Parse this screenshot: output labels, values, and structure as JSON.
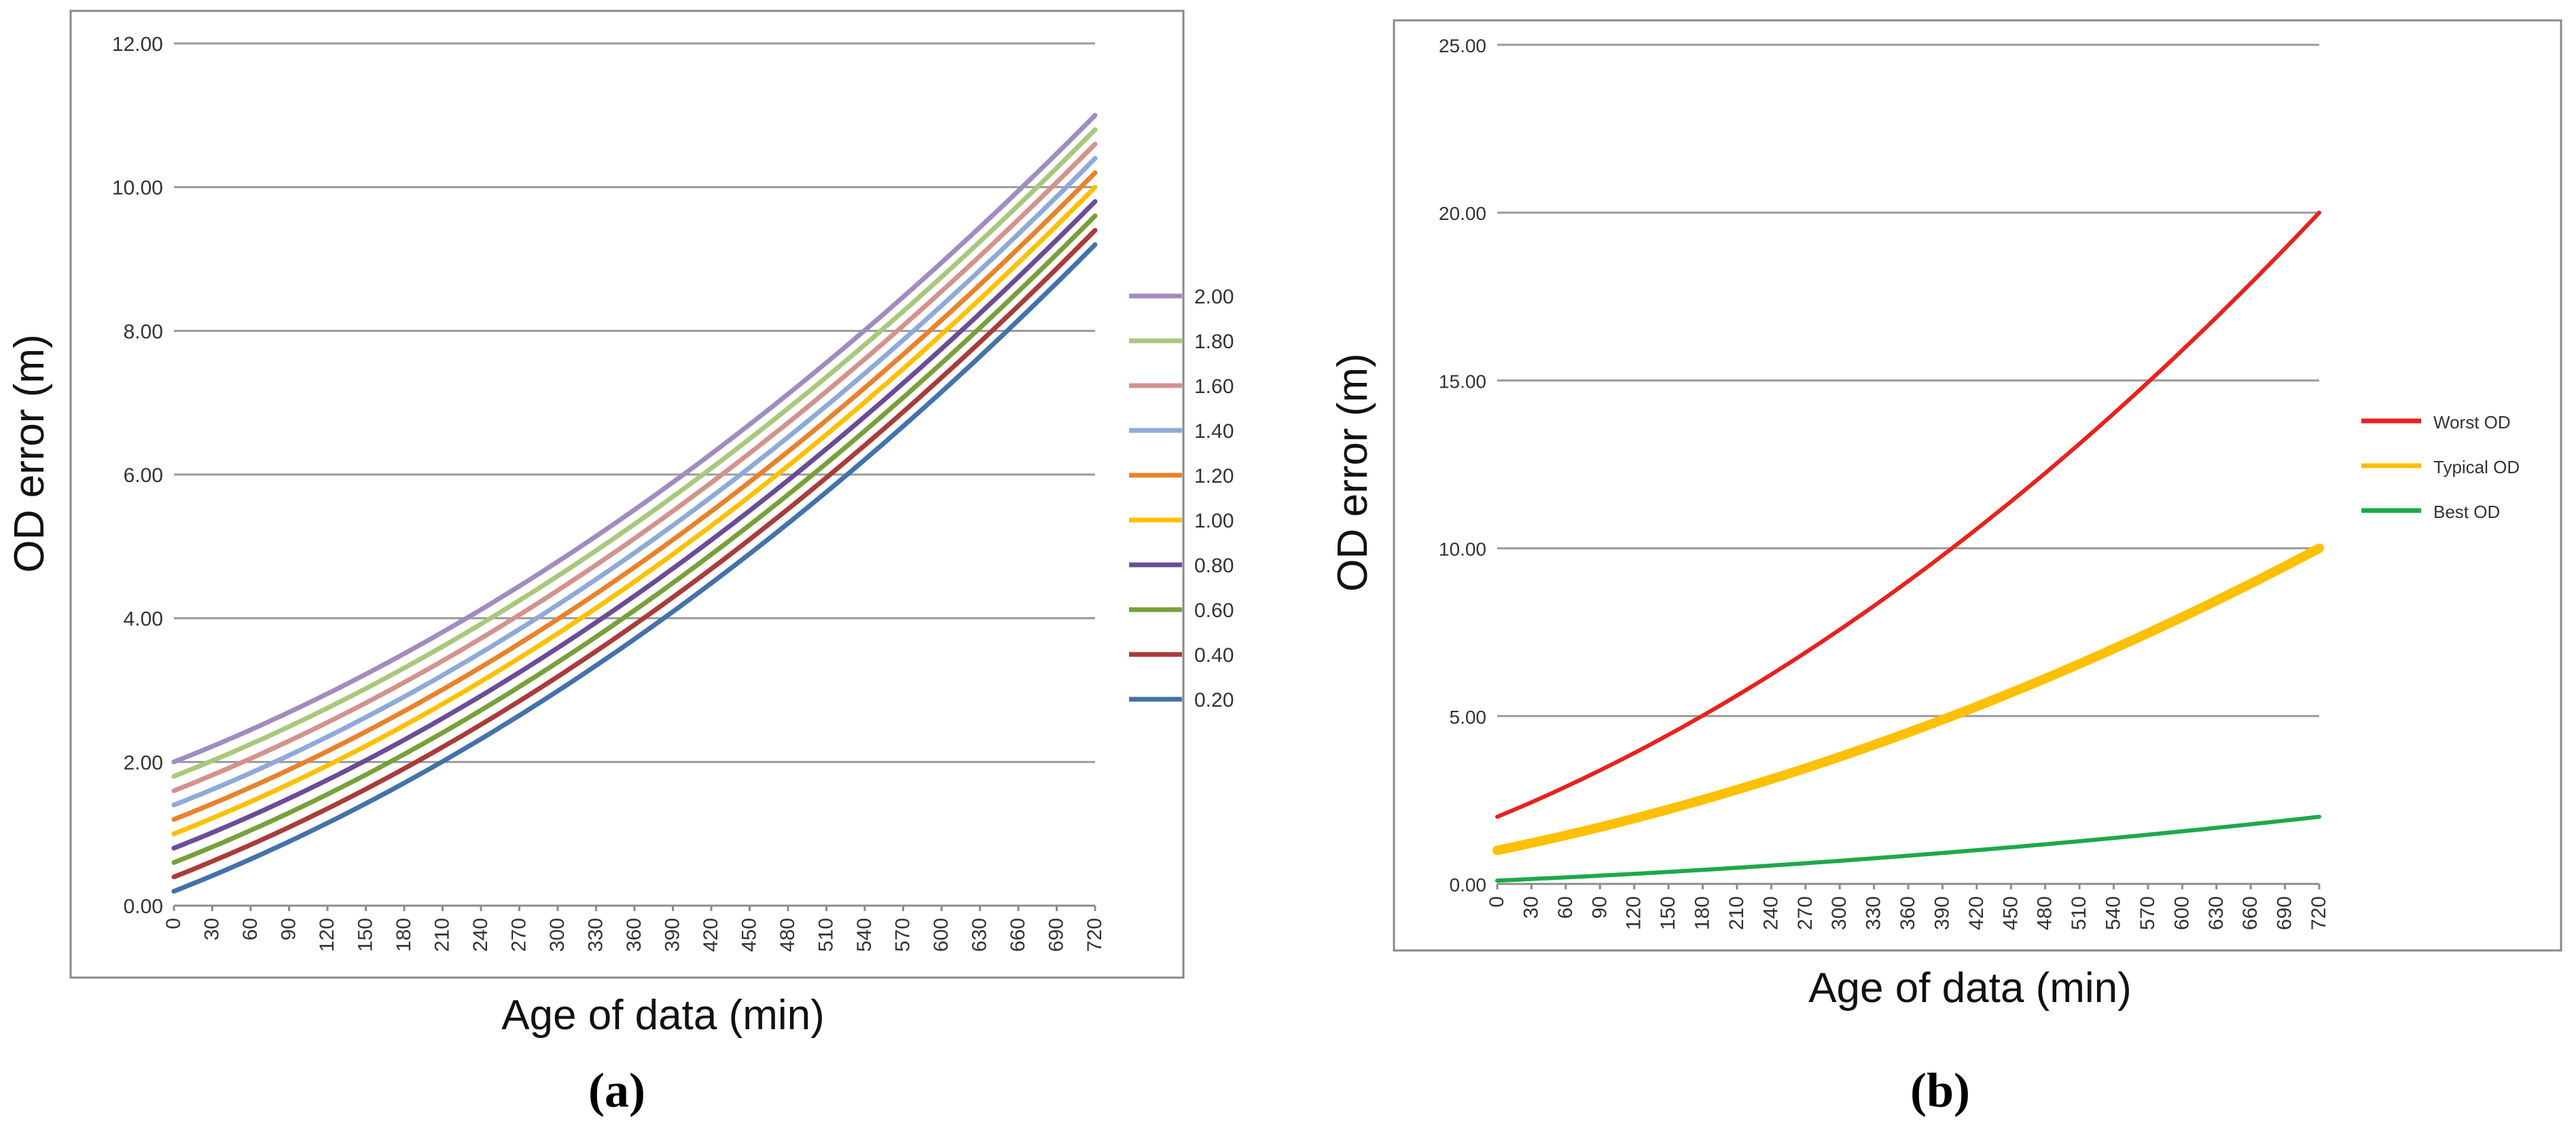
{
  "chart_data": [
    {
      "type": "line",
      "panel_label": "(a)",
      "xlabel": "Age of data (min)",
      "ylabel": "OD error (m)",
      "xlim": [
        0,
        720
      ],
      "ylim": [
        0,
        12
      ],
      "x_ticks": [
        "0",
        "30",
        "60",
        "90",
        "120",
        "150",
        "180",
        "210",
        "240",
        "270",
        "300",
        "330",
        "360",
        "390",
        "420",
        "450",
        "480",
        "510",
        "540",
        "570",
        "600",
        "630",
        "660",
        "690",
        "720"
      ],
      "y_ticks": [
        "0.00",
        "2.00",
        "4.00",
        "6.00",
        "8.00",
        "10.00",
        "12.00"
      ],
      "grid": "horizontal",
      "legend_position": "right",
      "x": [
        0,
        720
      ],
      "series": [
        {
          "name": "2.00",
          "color": "#a08cc0",
          "values": [
            2.0,
            11.0
          ]
        },
        {
          "name": "1.80",
          "color": "#a8c87c",
          "values": [
            1.8,
            10.8
          ]
        },
        {
          "name": "1.60",
          "color": "#d4928e",
          "values": [
            1.6,
            10.6
          ]
        },
        {
          "name": "1.40",
          "color": "#8eaad8",
          "values": [
            1.4,
            10.4
          ]
        },
        {
          "name": "1.20",
          "color": "#e8822c",
          "values": [
            1.2,
            10.2
          ]
        },
        {
          "name": "1.00",
          "color": "#ffc000",
          "values": [
            1.0,
            10.0
          ]
        },
        {
          "name": "0.80",
          "color": "#6a4c98",
          "values": [
            0.8,
            9.8
          ]
        },
        {
          "name": "0.60",
          "color": "#78a03c",
          "values": [
            0.6,
            9.6
          ]
        },
        {
          "name": "0.40",
          "color": "#a83c3a",
          "values": [
            0.4,
            9.4
          ]
        },
        {
          "name": "0.20",
          "color": "#4472aa",
          "values": [
            0.2,
            9.2
          ]
        }
      ]
    },
    {
      "type": "line",
      "panel_label": "(b)",
      "xlabel": "Age of data (min)",
      "ylabel": "OD error (m)",
      "xlim": [
        0,
        720
      ],
      "ylim": [
        0,
        25
      ],
      "x_ticks": [
        "0",
        "30",
        "60",
        "90",
        "120",
        "150",
        "180",
        "210",
        "240",
        "270",
        "300",
        "330",
        "360",
        "390",
        "420",
        "450",
        "480",
        "510",
        "540",
        "570",
        "600",
        "630",
        "660",
        "690",
        "720"
      ],
      "y_ticks": [
        "0.00",
        "5.00",
        "10.00",
        "15.00",
        "20.00",
        "25.00"
      ],
      "grid": "horizontal",
      "legend_position": "right",
      "x": [
        0,
        720
      ],
      "series": [
        {
          "name": "Worst OD",
          "color": "#e8221e",
          "values": [
            2.0,
            20.0
          ]
        },
        {
          "name": "Typical OD",
          "color": "#ffc000",
          "values": [
            1.0,
            10.0
          ]
        },
        {
          "name": "Best OD",
          "color": "#1ea84a",
          "values": [
            0.1,
            2.0
          ]
        }
      ]
    }
  ]
}
